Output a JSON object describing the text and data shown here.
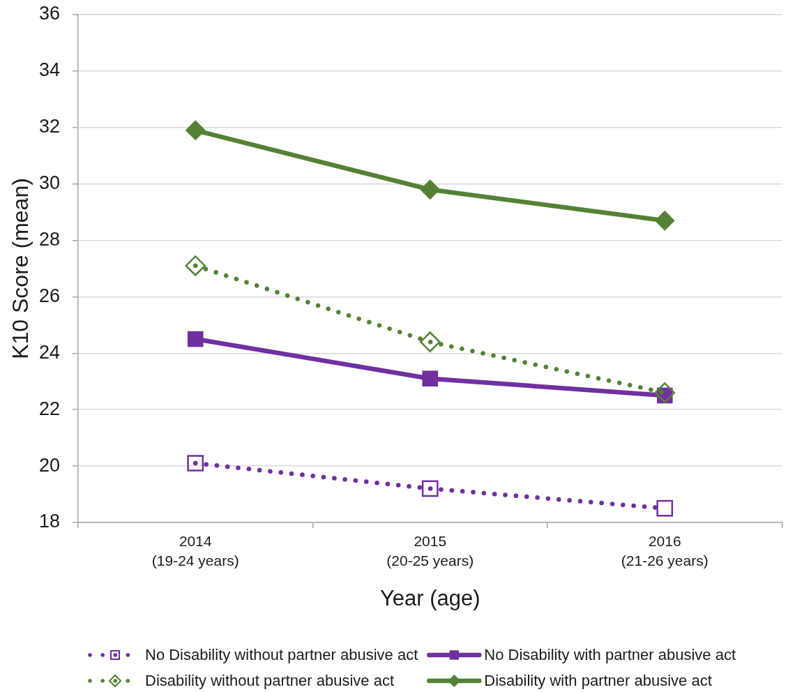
{
  "chart_data": {
    "type": "line",
    "xlabel": "Year (age)",
    "ylabel": "K10 Score (mean)",
    "categories": [
      "2014\n(19-24 years)",
      "2015\n(20-25 years)",
      "2016\n(21-26 years)"
    ],
    "ylim": [
      18,
      36
    ],
    "yticks": [
      18,
      20,
      22,
      24,
      26,
      28,
      30,
      32,
      34,
      36
    ],
    "grid": "y",
    "legend": "bottom",
    "series": [
      {
        "name": "No Disability without partner abusive act",
        "color": "#7030a0",
        "values": [
          20.1,
          19.2,
          18.5
        ],
        "marker": "square",
        "line_style": "dotted"
      },
      {
        "name": "No Disability with partner abusive act",
        "color": "#7030a0",
        "values": [
          24.5,
          23.1,
          22.5
        ],
        "marker": "square",
        "line_style": "solid"
      },
      {
        "name": "Disability without partner abusive act",
        "color": "#548235",
        "values": [
          27.1,
          24.4,
          22.6
        ],
        "marker": "diamond",
        "line_style": "dotted"
      },
      {
        "name": "Disability with partner abusive act",
        "color": "#548235",
        "values": [
          31.9,
          29.8,
          28.7
        ],
        "marker": "diamond",
        "line_style": "solid"
      }
    ]
  }
}
